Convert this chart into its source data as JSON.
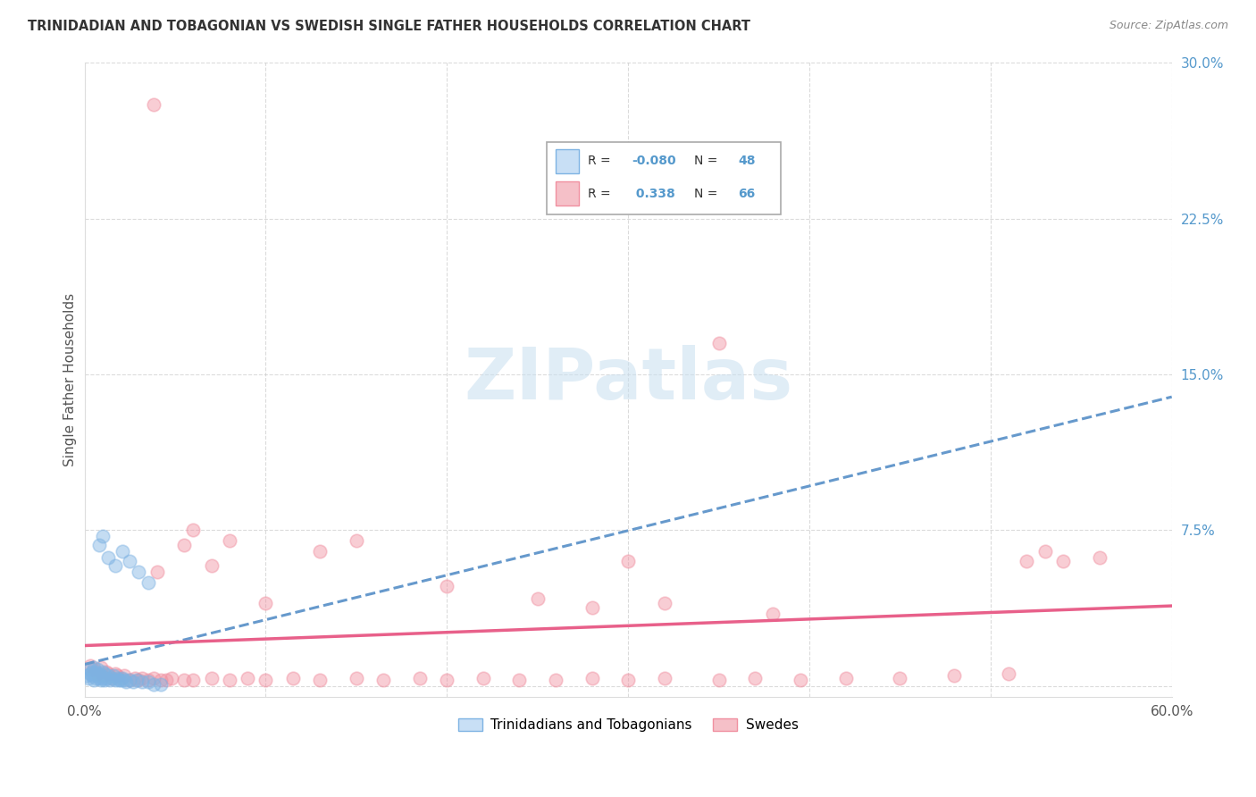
{
  "title": "TRINIDADIAN AND TOBAGONIAN VS SWEDISH SINGLE FATHER HOUSEHOLDS CORRELATION CHART",
  "source": "Source: ZipAtlas.com",
  "ylabel": "Single Father Households",
  "xlim": [
    0.0,
    0.6
  ],
  "ylim": [
    -0.005,
    0.3
  ],
  "grid_color": "#cccccc",
  "background_color": "#ffffff",
  "watermark": "ZIPatlas",
  "color_blue": "#7eb3e3",
  "color_pink": "#f090a0",
  "color_trend_blue": "#6699cc",
  "color_trend_pink": "#e8608a",
  "color_ytick": "#5599cc",
  "color_title": "#333333",
  "color_source": "#888888",
  "blue_x": [
    0.001,
    0.002,
    0.003,
    0.003,
    0.004,
    0.004,
    0.005,
    0.005,
    0.005,
    0.006,
    0.006,
    0.007,
    0.007,
    0.008,
    0.008,
    0.009,
    0.009,
    0.01,
    0.01,
    0.011,
    0.011,
    0.012,
    0.013,
    0.014,
    0.015,
    0.016,
    0.017,
    0.018,
    0.019,
    0.02,
    0.021,
    0.022,
    0.023,
    0.025,
    0.027,
    0.029,
    0.032,
    0.035,
    0.038,
    0.042,
    0.008,
    0.01,
    0.013,
    0.017,
    0.021,
    0.025,
    0.03,
    0.035
  ],
  "blue_y": [
    0.005,
    0.004,
    0.006,
    0.008,
    0.005,
    0.007,
    0.003,
    0.006,
    0.009,
    0.004,
    0.007,
    0.005,
    0.008,
    0.004,
    0.006,
    0.003,
    0.005,
    0.004,
    0.007,
    0.003,
    0.006,
    0.004,
    0.005,
    0.003,
    0.004,
    0.005,
    0.003,
    0.004,
    0.003,
    0.003,
    0.004,
    0.003,
    0.002,
    0.003,
    0.002,
    0.003,
    0.002,
    0.002,
    0.001,
    0.001,
    0.068,
    0.072,
    0.062,
    0.058,
    0.065,
    0.06,
    0.055,
    0.05
  ],
  "pink_x": [
    0.003,
    0.005,
    0.007,
    0.009,
    0.01,
    0.012,
    0.013,
    0.015,
    0.017,
    0.018,
    0.02,
    0.022,
    0.025,
    0.028,
    0.03,
    0.032,
    0.035,
    0.038,
    0.042,
    0.045,
    0.048,
    0.055,
    0.06,
    0.07,
    0.08,
    0.09,
    0.1,
    0.115,
    0.13,
    0.15,
    0.165,
    0.185,
    0.2,
    0.22,
    0.24,
    0.26,
    0.28,
    0.3,
    0.32,
    0.35,
    0.37,
    0.395,
    0.42,
    0.45,
    0.48,
    0.51,
    0.54,
    0.56,
    0.038,
    0.35,
    0.3,
    0.52,
    0.53,
    0.13,
    0.15,
    0.2,
    0.25,
    0.28,
    0.32,
    0.38,
    0.06,
    0.08,
    0.1,
    0.04,
    0.055,
    0.07
  ],
  "pink_y": [
    0.01,
    0.008,
    0.006,
    0.009,
    0.005,
    0.007,
    0.006,
    0.004,
    0.006,
    0.005,
    0.004,
    0.005,
    0.003,
    0.004,
    0.003,
    0.004,
    0.003,
    0.004,
    0.003,
    0.003,
    0.004,
    0.003,
    0.003,
    0.004,
    0.003,
    0.004,
    0.003,
    0.004,
    0.003,
    0.004,
    0.003,
    0.004,
    0.003,
    0.004,
    0.003,
    0.003,
    0.004,
    0.003,
    0.004,
    0.003,
    0.004,
    0.003,
    0.004,
    0.004,
    0.005,
    0.006,
    0.06,
    0.062,
    0.28,
    0.165,
    0.06,
    0.06,
    0.065,
    0.065,
    0.07,
    0.048,
    0.042,
    0.038,
    0.04,
    0.035,
    0.075,
    0.07,
    0.04,
    0.055,
    0.068,
    0.058
  ]
}
